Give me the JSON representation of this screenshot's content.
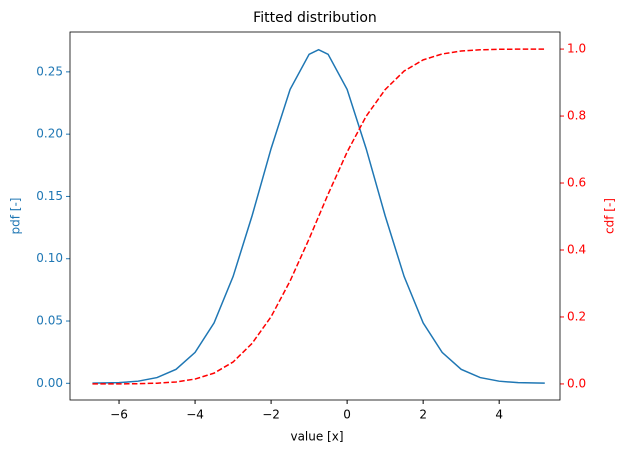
{
  "chart_data": {
    "type": "line",
    "title": "Fitted distribution",
    "xlabel": "value [x]",
    "ylabel": "pdf [-]",
    "y2label": "cdf [-]",
    "x": [
      -6.7,
      -6.0,
      -5.5,
      -5.0,
      -4.5,
      -4.0,
      -3.5,
      -3.0,
      -2.5,
      -2.0,
      -1.5,
      -1.0,
      -0.75,
      -0.5,
      0.0,
      0.5,
      1.0,
      1.5,
      2.0,
      2.5,
      3.0,
      3.5,
      4.0,
      4.5,
      5.0,
      5.2
    ],
    "series": [
      {
        "name": "pdf",
        "color": "#1f77b4",
        "dash": false,
        "axis": "y",
        "values": [
          0.0001,
          0.0005,
          0.0017,
          0.0046,
          0.0112,
          0.0248,
          0.0485,
          0.0857,
          0.1345,
          0.1884,
          0.2359,
          0.2641,
          0.2678,
          0.2641,
          0.2359,
          0.1884,
          0.1345,
          0.0857,
          0.0485,
          0.0248,
          0.0112,
          0.0046,
          0.0017,
          0.0005,
          0.0002,
          0.0001
        ]
      },
      {
        "name": "cdf",
        "color": "#ff0000",
        "dash": true,
        "axis": "y2",
        "values": [
          0.0,
          0.0002,
          0.0007,
          0.0022,
          0.0059,
          0.0146,
          0.0322,
          0.0655,
          0.121,
          0.2007,
          0.3075,
          0.4333,
          0.5,
          0.5667,
          0.6925,
          0.7993,
          0.879,
          0.9345,
          0.9678,
          0.9854,
          0.9941,
          0.9978,
          0.9993,
          0.9998,
          0.9999,
          1.0
        ]
      }
    ],
    "xlim": [
      -7.29,
      5.6
    ],
    "xticks": [
      {
        "value": -6,
        "label": "−6"
      },
      {
        "value": -4,
        "label": "−4"
      },
      {
        "value": -2,
        "label": "−2"
      },
      0,
      2,
      4
    ],
    "ylim": [
      -0.0134,
      0.282
    ],
    "yticks": [
      {
        "value": 0,
        "label": "0.00"
      },
      {
        "value": 0.05,
        "label": "0.05"
      },
      {
        "value": 0.1,
        "label": "0.10"
      },
      {
        "value": 0.15,
        "label": "0.15"
      },
      {
        "value": 0.2,
        "label": "0.20"
      },
      {
        "value": 0.25,
        "label": "0.25"
      }
    ],
    "y2lim": [
      -0.048,
      1.051
    ],
    "y2ticks": [
      {
        "value": 0,
        "label": "0.0"
      },
      0.2,
      0.4,
      0.6,
      0.8,
      {
        "value": 1,
        "label": "1.0"
      }
    ]
  }
}
